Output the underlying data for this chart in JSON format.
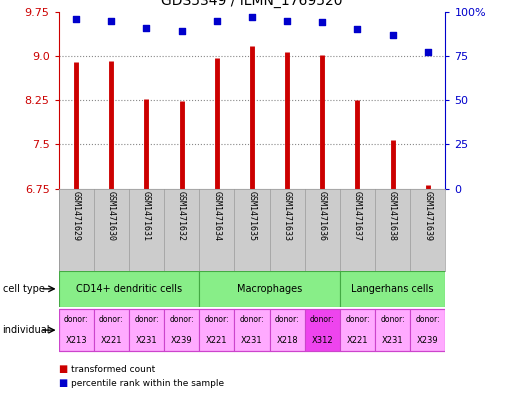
{
  "title": "GDS5349 / ILMN_1769520",
  "samples": [
    "GSM1471629",
    "GSM1471630",
    "GSM1471631",
    "GSM1471632",
    "GSM1471634",
    "GSM1471635",
    "GSM1471633",
    "GSM1471636",
    "GSM1471637",
    "GSM1471638",
    "GSM1471639"
  ],
  "transformed_count": [
    8.9,
    8.92,
    8.27,
    8.23,
    8.97,
    9.17,
    9.07,
    9.02,
    8.25,
    7.57,
    6.82
  ],
  "percentile_rank": [
    96,
    95,
    91,
    89,
    95,
    97,
    95,
    94,
    90,
    87,
    77
  ],
  "ylim_left": [
    6.75,
    9.75
  ],
  "ylim_right": [
    0,
    100
  ],
  "yticks_left": [
    6.75,
    7.5,
    8.25,
    9.0,
    9.75
  ],
  "yticks_right": [
    0,
    25,
    50,
    75,
    100
  ],
  "ytick_labels_right": [
    "0",
    "25",
    "50",
    "75",
    "100%"
  ],
  "bar_color": "#cc0000",
  "dot_color": "#0000cc",
  "cell_groups": [
    {
      "label": "CD14+ dendritic cells",
      "start": 0,
      "end": 4
    },
    {
      "label": "Macrophages",
      "start": 4,
      "end": 8
    },
    {
      "label": "Langerhans cells",
      "start": 8,
      "end": 11
    }
  ],
  "cell_type_color": "#88ee88",
  "cell_type_edge": "#44aa44",
  "donors": [
    "X213",
    "X221",
    "X231",
    "X239",
    "X221",
    "X231",
    "X218",
    "X312",
    "X221",
    "X231",
    "X239"
  ],
  "donor_colors": [
    "#ffaaff",
    "#ffaaff",
    "#ffaaff",
    "#ffaaff",
    "#ffaaff",
    "#ffaaff",
    "#ffaaff",
    "#ee44ee",
    "#ffaaff",
    "#ffaaff",
    "#ffaaff"
  ],
  "donor_edge": "#cc44cc",
  "sample_bg": "#cccccc",
  "sample_edge": "#999999",
  "background_color": "#ffffff",
  "label_color_left": "#cc0000",
  "label_color_right": "#0000cc",
  "grid_color": "#888888"
}
